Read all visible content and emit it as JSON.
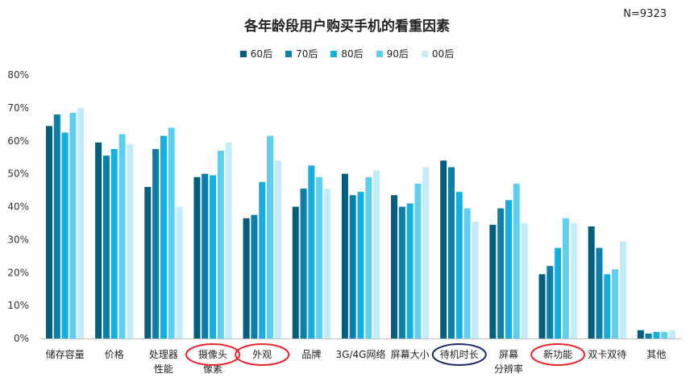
{
  "chart_data": {
    "type": "bar",
    "title": "各年龄段用户购买手机的看重因素",
    "note": "N=9323",
    "categories": [
      "储存容量",
      "价格",
      "处理器\n性能",
      "摄像头\n像素",
      "外观",
      "品牌",
      "3G/4G网络",
      "屏幕大小",
      "待机时长",
      "屏幕\n分辨率",
      "新功能",
      "双卡双待",
      "其他"
    ],
    "series": [
      {
        "name": "60后",
        "color": "#005f7f",
        "values": [
          64.5,
          59.5,
          46,
          49,
          36.5,
          40,
          50,
          43.5,
          54,
          34.5,
          19.5,
          34,
          2.5
        ]
      },
      {
        "name": "70后",
        "color": "#0a7fa8",
        "values": [
          68,
          55.5,
          57.5,
          50,
          37.5,
          45.5,
          43.5,
          40,
          52,
          39.5,
          22,
          27.5,
          1.5
        ]
      },
      {
        "name": "80后",
        "color": "#13afe0",
        "values": [
          62.5,
          57.5,
          61.5,
          49.5,
          47.5,
          52.5,
          44.5,
          41,
          44.5,
          42,
          27.5,
          19.5,
          2
        ]
      },
      {
        "name": "90后",
        "color": "#5fcff0",
        "values": [
          68.5,
          62,
          64,
          57,
          61.5,
          49,
          49,
          47,
          39.5,
          47,
          36.5,
          21,
          2
        ]
      },
      {
        "name": "00后",
        "color": "#c3ecf9",
        "values": [
          70,
          59,
          40,
          59.5,
          54,
          45.5,
          51,
          52,
          35.5,
          35,
          35,
          29.5,
          2.5
        ]
      }
    ],
    "y_ticks": [
      "0%",
      "10%",
      "20%",
      "30%",
      "40%",
      "50%",
      "60%",
      "70%",
      "80%"
    ],
    "ylim": [
      0,
      80
    ],
    "highlighted_categories": [
      {
        "index": 3,
        "color": "#e8212b"
      },
      {
        "index": 4,
        "color": "#e8212b"
      },
      {
        "index": 8,
        "color": "#1a2a6c"
      },
      {
        "index": 10,
        "color": "#e8212b"
      }
    ]
  }
}
